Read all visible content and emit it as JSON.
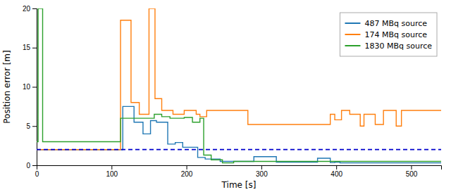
{
  "chart_data": {
    "type": "line",
    "xlabel": "Time [s]",
    "ylabel": "Position error [m]",
    "xlim": [
      0,
      540
    ],
    "ylim": [
      0,
      20
    ],
    "xticks": [
      0,
      100,
      200,
      300,
      400,
      500
    ],
    "yticks": [
      0,
      5,
      10,
      15,
      20
    ],
    "grid": false,
    "legend": "upper right",
    "series": [
      {
        "name": "487 MBq source",
        "color": "#1f77b4",
        "x": [
          0,
          115,
          115,
          130,
          130,
          142,
          142,
          152,
          152,
          160,
          160,
          175,
          175,
          185,
          185,
          195,
          195,
          215,
          215,
          225,
          225,
          245,
          245,
          290,
          290,
          320,
          320,
          375,
          375,
          392,
          392,
          398,
          398,
          405,
          405,
          540
        ],
        "values": [
          2.0,
          2.0,
          7.5,
          7.5,
          5.5,
          5.5,
          4.0,
          4.0,
          5.7,
          5.7,
          5.5,
          5.5,
          2.7,
          2.7,
          2.9,
          2.9,
          2.3,
          2.3,
          1.0,
          1.0,
          0.8,
          0.8,
          0.5,
          0.5,
          1.1,
          1.1,
          0.4,
          0.4,
          0.9,
          0.9,
          0.35,
          0.35,
          0.4,
          0.4,
          0.3,
          0.3
        ]
      },
      {
        "name": "174 MBq source",
        "color": "#ff7f0e",
        "x": [
          0,
          112,
          112,
          126,
          126,
          137,
          137,
          150,
          150,
          158,
          158,
          167,
          167,
          182,
          182,
          197,
          197,
          213,
          213,
          218,
          218,
          227,
          227,
          282,
          282,
          392,
          392,
          398,
          398,
          407,
          407,
          418,
          418,
          432,
          432,
          437,
          437,
          452,
          452,
          463,
          463,
          480,
          480,
          487,
          487,
          540
        ],
        "values": [
          2.0,
          2.0,
          18.5,
          18.5,
          8.0,
          8.0,
          6.5,
          6.5,
          20.0,
          20.0,
          8.5,
          8.5,
          7.0,
          7.0,
          6.5,
          6.5,
          7.0,
          7.0,
          6.5,
          6.5,
          6.2,
          6.2,
          7.0,
          7.0,
          5.2,
          5.2,
          6.5,
          6.5,
          5.8,
          5.8,
          7.0,
          7.0,
          6.5,
          6.5,
          5.0,
          5.0,
          6.5,
          6.5,
          5.2,
          5.2,
          7.0,
          7.0,
          5.0,
          5.0,
          7.0,
          7.0
        ]
      },
      {
        "name": "1830 MBq source",
        "color": "#2ca02c",
        "x": [
          0,
          2,
          2,
          8,
          8,
          112,
          112,
          157,
          157,
          167,
          167,
          178,
          178,
          197,
          197,
          208,
          208,
          218,
          218,
          223,
          223,
          233,
          233,
          248,
          248,
          263,
          263,
          540
        ],
        "values": [
          3.0,
          3.0,
          20.0,
          20.0,
          3.0,
          3.0,
          6.0,
          6.0,
          6.5,
          6.5,
          6.2,
          6.2,
          6.0,
          6.0,
          6.1,
          6.1,
          5.5,
          5.5,
          6.0,
          6.0,
          1.3,
          1.3,
          0.7,
          0.7,
          0.3,
          0.3,
          0.5,
          0.5
        ]
      },
      {
        "type": "hline",
        "color": "#0000cc",
        "line_style": "dashed",
        "values": [
          2.0
        ]
      }
    ]
  }
}
